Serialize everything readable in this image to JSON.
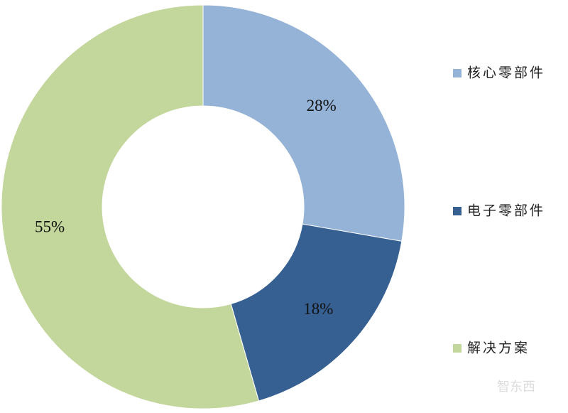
{
  "chart_data": {
    "type": "donut",
    "categories": [
      "核心零部件",
      "电子零部件",
      "解决方案"
    ],
    "values": [
      28,
      18,
      55
    ],
    "value_labels": [
      "28%",
      "18%",
      "55%"
    ],
    "colors": [
      "#95b3d7",
      "#376092",
      "#c3d69b"
    ],
    "legend": "right"
  },
  "watermark": "智东西"
}
